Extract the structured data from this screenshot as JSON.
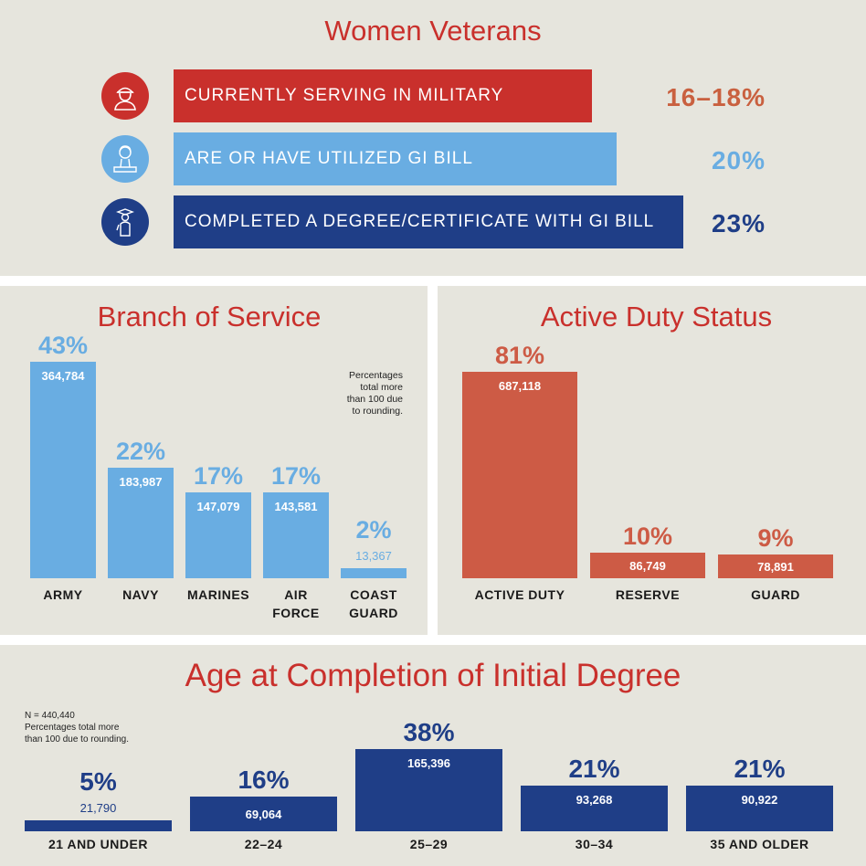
{
  "women_veterans": {
    "title": "Women Veterans",
    "rows": [
      {
        "label": "CURRENTLY SERVING IN MILITARY",
        "value": "16–18%",
        "icon": "soldier-icon",
        "color": "#c9302c",
        "value_color": "#c9603f",
        "fraction": 0.82
      },
      {
        "label": "ARE OR HAVE UTILIZED GI BILL",
        "value": "20%",
        "icon": "student-icon",
        "color": "#69ade2",
        "value_color": "#69ade2",
        "fraction": 0.87
      },
      {
        "label": "COMPLETED A DEGREE/CERTIFICATE WITH GI BILL",
        "value": "23%",
        "icon": "graduate-icon",
        "color": "#1f3e87",
        "value_color": "#1f3e87",
        "fraction": 1.0
      }
    ]
  },
  "branch": {
    "title": "Branch of Service",
    "note": [
      "Percentages",
      "total more",
      "than 100 due",
      "to rounding."
    ]
  },
  "active": {
    "title": "Active Duty Status"
  },
  "age": {
    "title": "Age at Completion of Initial Degree",
    "note": [
      "N = 440,440",
      "Percentages total more",
      "than 100 due to rounding."
    ]
  },
  "chart_data": [
    {
      "type": "bar",
      "title": "Branch of Service",
      "color": "#69ade2",
      "categories": [
        [
          "ARMY"
        ],
        [
          "NAVY"
        ],
        [
          "MARINES"
        ],
        [
          "AIR",
          "FORCE"
        ],
        [
          "COAST",
          "GUARD"
        ]
      ],
      "values": [
        364784,
        183987,
        147079,
        143581,
        13367
      ],
      "value_labels": [
        "364,784",
        "183,987",
        "147,079",
        "143,581",
        "13,367"
      ],
      "percents": [
        "43%",
        "22%",
        "17%",
        "17%",
        "2%"
      ],
      "percent_values": [
        43,
        22,
        17,
        17,
        2
      ]
    },
    {
      "type": "bar",
      "title": "Active Duty Status",
      "color": "#cd5b45",
      "categories": [
        [
          "ACTIVE DUTY"
        ],
        [
          "RESERVE"
        ],
        [
          "GUARD"
        ]
      ],
      "values": [
        687118,
        86749,
        78891
      ],
      "value_labels": [
        "687,118",
        "86,749",
        "78,891"
      ],
      "percents": [
        "81%",
        "10%",
        "9%"
      ],
      "percent_values": [
        81,
        10,
        9
      ]
    },
    {
      "type": "bar",
      "title": "Age at Completion of Initial Degree",
      "color": "#1f3e87",
      "categories": [
        [
          "21 AND UNDER"
        ],
        [
          "22–24"
        ],
        [
          "25–29"
        ],
        [
          "30–34"
        ],
        [
          "35 AND OLDER"
        ]
      ],
      "values": [
        21790,
        69064,
        165396,
        93268,
        90922
      ],
      "value_labels": [
        "21,790",
        "69,064",
        "165,396",
        "93,268",
        "90,922"
      ],
      "percents": [
        "5%",
        "16%",
        "38%",
        "21%",
        "21%"
      ],
      "percent_values": [
        5,
        16,
        38,
        21,
        21
      ]
    }
  ]
}
